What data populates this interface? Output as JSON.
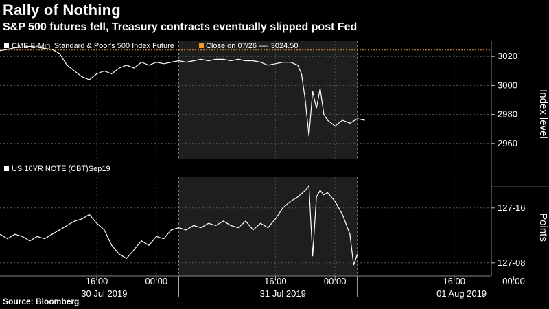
{
  "header": {
    "title": "Rally of Nothing",
    "subtitle": "S&P 500 futures fell, Treasury contracts eventually slipped post Fed"
  },
  "footer": {
    "source": "Source: Bloomberg"
  },
  "colors": {
    "background": "#000000",
    "line": "#ffffff",
    "reference": "#f39c26",
    "grid": "#7a7a7a",
    "shade": "#1e1e1e"
  },
  "chart_data": [
    {
      "type": "line",
      "legend": [
        {
          "label": "CME E-Mini Standard & Poor's 500 Index Future",
          "color": "#ffffff"
        },
        {
          "label": "Close on 07/26 ---- 3024.50",
          "color": "#f39c26"
        }
      ],
      "ylabel": "Index level",
      "yticks": [
        2960,
        2980,
        3000,
        3020
      ],
      "ylim": [
        2949,
        3031
      ],
      "xlim": [
        0,
        66
      ],
      "reference_line": 3024.5,
      "grid": true,
      "series": [
        {
          "name": "CME E-Mini Standard & Poor's 500 Index Future",
          "x": [
            0,
            1,
            2,
            3,
            4,
            5,
            6,
            7,
            8,
            9,
            10,
            11,
            12,
            13,
            14,
            15,
            16,
            17,
            18,
            19,
            20,
            21,
            22,
            23,
            24,
            25,
            26,
            27,
            28,
            29,
            30,
            31,
            32,
            33,
            34,
            35,
            36,
            37,
            38,
            39,
            40,
            40.5,
            41,
            41.5,
            42,
            42.5,
            43,
            43.5,
            44,
            45,
            46,
            47,
            48,
            49
          ],
          "y": [
            3024,
            3025,
            3026,
            3026.5,
            3027,
            3026.5,
            3025.5,
            3025,
            3022,
            3014,
            3010,
            3006,
            3004,
            3008,
            3010,
            3008,
            3012,
            3014,
            3012,
            3016,
            3014,
            3016,
            3015,
            3016,
            3017,
            3016,
            3017,
            3018,
            3017,
            3018,
            3018,
            3017,
            3018,
            3017,
            3017,
            3016,
            3014,
            3015,
            3016,
            3016,
            3014,
            3008,
            2990,
            2965,
            2996,
            2984,
            2998,
            2980,
            2976,
            2972,
            2976,
            2974,
            2977,
            2976
          ]
        }
      ]
    },
    {
      "type": "line",
      "legend": [
        {
          "label": "US 10YR NOTE (CBT)Sep19",
          "color": "#ffffff"
        }
      ],
      "ylabel": "Points",
      "yticks": [
        "127-08",
        "127-16"
      ],
      "ytick_values": [
        127.25,
        127.5
      ],
      "ylim": [
        127.19,
        127.64
      ],
      "xlim": [
        0,
        66
      ],
      "grid": true,
      "series": [
        {
          "name": "US 10YR NOTE (CBT)Sep19",
          "x": [
            0,
            1,
            2,
            3,
            4,
            5,
            6,
            7,
            8,
            9,
            10,
            11,
            12,
            13,
            14,
            15,
            16,
            17,
            18,
            19,
            20,
            21,
            22,
            23,
            24,
            25,
            26,
            27,
            28,
            29,
            30,
            31,
            32,
            33,
            34,
            35,
            36,
            37,
            38,
            39,
            40,
            41,
            41.5,
            42,
            42.5,
            43,
            43.5,
            44,
            45,
            46,
            47,
            47.5,
            48
          ],
          "y": [
            127.38,
            127.36,
            127.38,
            127.37,
            127.35,
            127.37,
            127.36,
            127.38,
            127.4,
            127.42,
            127.44,
            127.45,
            127.47,
            127.43,
            127.4,
            127.33,
            127.29,
            127.27,
            127.31,
            127.35,
            127.33,
            127.37,
            127.36,
            127.4,
            127.41,
            127.4,
            127.42,
            127.41,
            127.43,
            127.42,
            127.44,
            127.42,
            127.41,
            127.44,
            127.4,
            127.43,
            127.41,
            127.45,
            127.5,
            127.53,
            127.55,
            127.58,
            127.6,
            127.28,
            127.55,
            127.58,
            127.56,
            127.57,
            127.53,
            127.47,
            127.38,
            127.24,
            127.29
          ]
        }
      ]
    }
  ],
  "xaxis": {
    "time_ticks": [
      {
        "x": 13,
        "label": "16:00"
      },
      {
        "x": 21,
        "label": "00:00"
      },
      {
        "x": 37,
        "label": "16:00"
      },
      {
        "x": 45,
        "label": "00:00"
      },
      {
        "x": 61,
        "label": "16:00"
      },
      {
        "x": 69,
        "label": "00:00"
      }
    ],
    "date_labels": [
      {
        "x": 14,
        "label": "30 Jul 2019"
      },
      {
        "x": 38,
        "label": "31 Jul 2019"
      },
      {
        "x": 62,
        "label": "01 Aug 2019"
      }
    ],
    "day_separators": [
      24,
      48
    ],
    "shaded_range": [
      24,
      48
    ]
  }
}
